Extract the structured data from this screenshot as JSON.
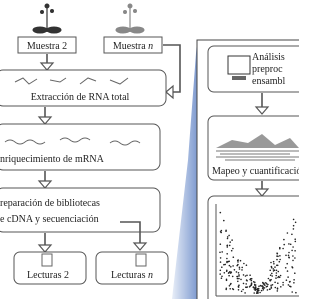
{
  "samples": [
    {
      "label": "Muestra 2"
    },
    {
      "label": "Muestra ",
      "italic": "n"
    }
  ],
  "steps": [
    "Extracción de RNA total",
    "nriquecimiento de mRNA",
    [
      "reparación de bibliotecas",
      "e cDNA y secuenciación"
    ]
  ],
  "reads": [
    {
      "label": "Lecturas 2"
    },
    {
      "label": "Lecturas ",
      "italic": "n"
    }
  ],
  "panel": {
    "preprocessing": [
      "Análisis",
      "preproc",
      "ensambl"
    ],
    "mapping": "Mapeo y cuantificació"
  }
}
